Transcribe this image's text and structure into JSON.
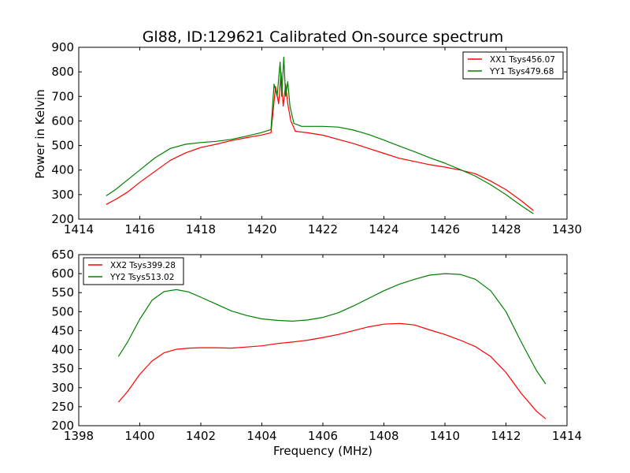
{
  "figure": {
    "background": "#ffffff"
  },
  "chart_data": [
    {
      "type": "line",
      "title": "Gl88, ID:129621 Calibrated On-source spectrum",
      "xlabel": "",
      "ylabel": "Power in Kelvin",
      "xlim": [
        1414,
        1430
      ],
      "ylim": [
        200,
        900
      ],
      "xticks": [
        1414,
        1416,
        1418,
        1420,
        1422,
        1424,
        1426,
        1428,
        1430
      ],
      "yticks": [
        200,
        300,
        400,
        500,
        600,
        700,
        800,
        900
      ],
      "grid": false,
      "legend": "top-right",
      "series": [
        {
          "name": "XX1 Tsys456.07",
          "color": "#ff0000",
          "points": [
            [
              1414.9,
              260
            ],
            [
              1415.2,
              280
            ],
            [
              1415.6,
              310
            ],
            [
              1416.0,
              350
            ],
            [
              1416.5,
              395
            ],
            [
              1417.0,
              440
            ],
            [
              1417.5,
              470
            ],
            [
              1418.0,
              492
            ],
            [
              1418.5,
              505
            ],
            [
              1419.0,
              520
            ],
            [
              1419.5,
              532
            ],
            [
              1420.0,
              543
            ],
            [
              1420.3,
              552
            ],
            [
              1420.45,
              740
            ],
            [
              1420.55,
              670
            ],
            [
              1420.63,
              800
            ],
            [
              1420.7,
              660
            ],
            [
              1420.78,
              750
            ],
            [
              1420.85,
              670
            ],
            [
              1420.95,
              600
            ],
            [
              1421.1,
              558
            ],
            [
              1421.5,
              552
            ],
            [
              1422.0,
              542
            ],
            [
              1422.5,
              525
            ],
            [
              1423.0,
              508
            ],
            [
              1423.5,
              488
            ],
            [
              1424.0,
              468
            ],
            [
              1424.5,
              448
            ],
            [
              1425.0,
              435
            ],
            [
              1425.5,
              422
            ],
            [
              1426.0,
              412
            ],
            [
              1426.5,
              400
            ],
            [
              1427.0,
              385
            ],
            [
              1427.5,
              355
            ],
            [
              1428.0,
              320
            ],
            [
              1428.5,
              275
            ],
            [
              1428.9,
              235
            ]
          ]
        },
        {
          "name": "YY1 Tsys479.68",
          "color": "#008000",
          "points": [
            [
              1414.9,
              295
            ],
            [
              1415.2,
              320
            ],
            [
              1415.6,
              360
            ],
            [
              1416.0,
              400
            ],
            [
              1416.5,
              450
            ],
            [
              1417.0,
              488
            ],
            [
              1417.5,
              505
            ],
            [
              1418.0,
              512
            ],
            [
              1418.5,
              517
            ],
            [
              1419.0,
              525
            ],
            [
              1419.5,
              538
            ],
            [
              1420.0,
              553
            ],
            [
              1420.3,
              565
            ],
            [
              1420.4,
              750
            ],
            [
              1420.5,
              700
            ],
            [
              1420.6,
              840
            ],
            [
              1420.65,
              700
            ],
            [
              1420.72,
              860
            ],
            [
              1420.78,
              700
            ],
            [
              1420.85,
              760
            ],
            [
              1420.92,
              660
            ],
            [
              1421.05,
              590
            ],
            [
              1421.3,
              578
            ],
            [
              1422.0,
              578
            ],
            [
              1422.5,
              575
            ],
            [
              1423.0,
              563
            ],
            [
              1423.5,
              545
            ],
            [
              1424.0,
              522
            ],
            [
              1424.5,
              498
            ],
            [
              1425.0,
              475
            ],
            [
              1425.5,
              450
            ],
            [
              1426.0,
              428
            ],
            [
              1426.5,
              402
            ],
            [
              1427.0,
              375
            ],
            [
              1427.5,
              340
            ],
            [
              1428.0,
              300
            ],
            [
              1428.5,
              255
            ],
            [
              1428.9,
              222
            ]
          ]
        }
      ]
    },
    {
      "type": "line",
      "title": "",
      "xlabel": "Frequency (MHz)",
      "ylabel": "",
      "xlim": [
        1398,
        1414
      ],
      "ylim": [
        200,
        650
      ],
      "xticks": [
        1398,
        1400,
        1402,
        1404,
        1406,
        1408,
        1410,
        1412,
        1414
      ],
      "yticks": [
        200,
        250,
        300,
        350,
        400,
        450,
        500,
        550,
        600,
        650
      ],
      "grid": false,
      "legend": "top-left",
      "series": [
        {
          "name": "XX2 Tsys399.28",
          "color": "#ff0000",
          "points": [
            [
              1399.3,
              262
            ],
            [
              1399.6,
              290
            ],
            [
              1400.0,
              335
            ],
            [
              1400.4,
              370
            ],
            [
              1400.8,
              392
            ],
            [
              1401.2,
              401
            ],
            [
              1401.6,
              404
            ],
            [
              1402.0,
              405
            ],
            [
              1402.5,
              405
            ],
            [
              1403.0,
              404
            ],
            [
              1403.5,
              407
            ],
            [
              1404.0,
              410
            ],
            [
              1404.5,
              416
            ],
            [
              1405.0,
              420
            ],
            [
              1405.5,
              425
            ],
            [
              1406.0,
              432
            ],
            [
              1406.5,
              440
            ],
            [
              1407.0,
              450
            ],
            [
              1407.5,
              460
            ],
            [
              1408.0,
              467
            ],
            [
              1408.5,
              469
            ],
            [
              1409.0,
              465
            ],
            [
              1409.5,
              452
            ],
            [
              1410.0,
              440
            ],
            [
              1410.5,
              425
            ],
            [
              1411.0,
              408
            ],
            [
              1411.5,
              382
            ],
            [
              1412.0,
              340
            ],
            [
              1412.5,
              285
            ],
            [
              1413.0,
              238
            ],
            [
              1413.3,
              218
            ]
          ]
        },
        {
          "name": "YY2 Tsys513.02",
          "color": "#008000",
          "points": [
            [
              1399.3,
              382
            ],
            [
              1399.6,
              420
            ],
            [
              1400.0,
              480
            ],
            [
              1400.4,
              530
            ],
            [
              1400.8,
              553
            ],
            [
              1401.2,
              558
            ],
            [
              1401.6,
              552
            ],
            [
              1402.0,
              538
            ],
            [
              1402.5,
              520
            ],
            [
              1403.0,
              502
            ],
            [
              1403.5,
              490
            ],
            [
              1404.0,
              481
            ],
            [
              1404.5,
              477
            ],
            [
              1405.0,
              475
            ],
            [
              1405.5,
              478
            ],
            [
              1406.0,
              485
            ],
            [
              1406.5,
              497
            ],
            [
              1407.0,
              515
            ],
            [
              1407.5,
              535
            ],
            [
              1408.0,
              555
            ],
            [
              1408.5,
              572
            ],
            [
              1409.0,
              585
            ],
            [
              1409.5,
              596
            ],
            [
              1410.0,
              600
            ],
            [
              1410.5,
              598
            ],
            [
              1411.0,
              585
            ],
            [
              1411.5,
              555
            ],
            [
              1412.0,
              500
            ],
            [
              1412.5,
              420
            ],
            [
              1413.0,
              345
            ],
            [
              1413.3,
              310
            ]
          ]
        }
      ]
    }
  ]
}
